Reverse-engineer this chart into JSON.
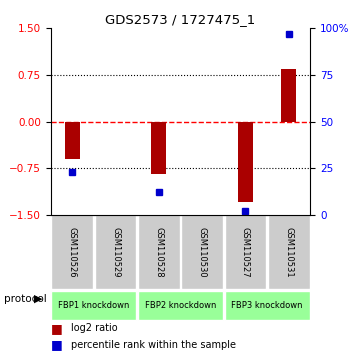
{
  "title": "GDS2573 / 1727475_1",
  "samples": [
    "GSM110526",
    "GSM110529",
    "GSM110528",
    "GSM110530",
    "GSM110527",
    "GSM110531"
  ],
  "log2_ratio": [
    -0.6,
    0.0,
    -0.85,
    0.0,
    -1.3,
    0.85
  ],
  "percentile_rank": [
    23,
    0,
    12,
    0,
    2,
    97
  ],
  "ylim_left": [
    -1.5,
    1.5
  ],
  "ylim_right": [
    0,
    100
  ],
  "yticks_left": [
    -1.5,
    -0.75,
    0,
    0.75,
    1.5
  ],
  "yticks_right": [
    0,
    25,
    50,
    75,
    100
  ],
  "hlines": [
    0.75,
    -0.75
  ],
  "zero_line_color": "#ff0000",
  "bar_color_red": "#aa0000",
  "bar_color_blue": "#0000cc",
  "bg_color": "#ffffff",
  "sample_bg": "#cccccc",
  "protocol_bg": "#99ff99",
  "proto_groups": [
    [
      0,
      1,
      "FBP1 knockdown"
    ],
    [
      2,
      3,
      "FBP2 knockdown"
    ],
    [
      4,
      5,
      "FBP3 knockdown"
    ]
  ]
}
